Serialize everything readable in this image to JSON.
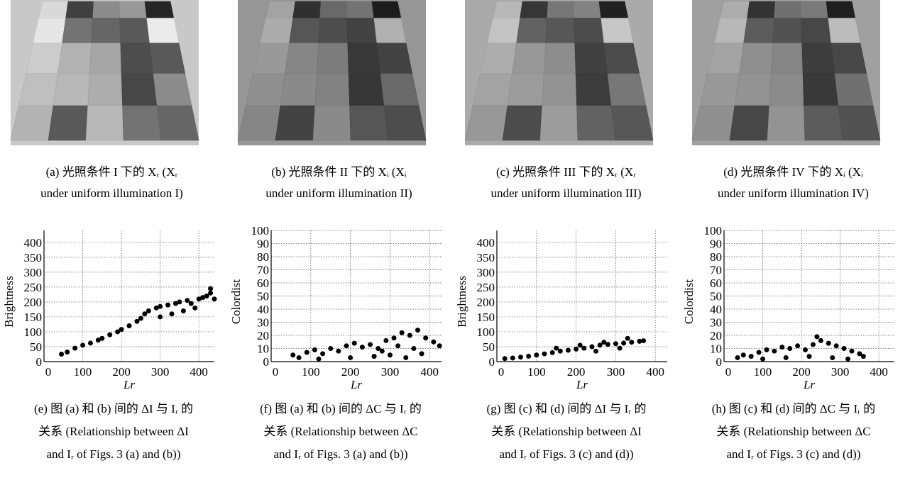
{
  "photos": [
    {
      "caption": [
        "(a) 光照条件 I 下的 Xᵣ (Xᵣ",
        "under uniform illumination I)"
      ]
    },
    {
      "caption": [
        "(b) 光照条件 II 下的 Xᵢ (Xᵢ",
        "under uniform illumination II)"
      ]
    },
    {
      "caption": [
        "(c) 光照条件 III 下的 Xᵣ (Xᵣ",
        "under uniform illumination III)"
      ]
    },
    {
      "caption": [
        "(d) 光照条件 IV 下的 Xᵢ (Xᵢ",
        "under uniform illumination IV)"
      ]
    }
  ],
  "chart_data": [
    {
      "type": "scatter",
      "x_label": "Lr",
      "y_label": "Brightness",
      "color": "#000000",
      "grid": true,
      "xlim": [
        0,
        440
      ],
      "ylim": [
        0,
        440
      ],
      "xticks": [
        0,
        100,
        200,
        300,
        400
      ],
      "yticks": [
        0,
        50,
        100,
        150,
        200,
        250,
        300,
        350,
        400
      ],
      "x": [
        45,
        60,
        80,
        100,
        120,
        140,
        150,
        170,
        190,
        200,
        220,
        240,
        250,
        260,
        270,
        290,
        300,
        320,
        340,
        350,
        370,
        380,
        400,
        410,
        420,
        430,
        440,
        330,
        360,
        300,
        390,
        430
      ],
      "values": [
        25,
        32,
        45,
        55,
        62,
        72,
        78,
        90,
        100,
        108,
        120,
        135,
        145,
        160,
        170,
        180,
        185,
        190,
        195,
        200,
        205,
        195,
        210,
        215,
        220,
        230,
        210,
        160,
        170,
        150,
        180,
        245
      ],
      "caption": [
        "(e) 图 (a) 和 (b) 间的 ΔI 与 Iᵣ 的",
        "关系 (Relationship between ΔI",
        "and Iᵣ of Figs. 3 (a) and (b))"
      ]
    },
    {
      "type": "scatter",
      "x_label": "Lr",
      "y_label": "Colordist",
      "color": "#000000",
      "grid": true,
      "xlim": [
        0,
        430
      ],
      "ylim": [
        0,
        100
      ],
      "xticks": [
        0,
        100,
        200,
        300,
        400
      ],
      "yticks": [
        0,
        10,
        20,
        30,
        40,
        50,
        60,
        70,
        80,
        90,
        100
      ],
      "x": [
        55,
        70,
        90,
        110,
        130,
        150,
        170,
        190,
        210,
        230,
        250,
        270,
        290,
        310,
        330,
        350,
        370,
        390,
        410,
        425,
        120,
        200,
        260,
        300,
        340,
        380,
        360,
        320,
        280
      ],
      "values": [
        5,
        3,
        7,
        9,
        6,
        10,
        8,
        12,
        14,
        11,
        13,
        10,
        16,
        18,
        22,
        20,
        24,
        18,
        15,
        12,
        2,
        3,
        4,
        5,
        3,
        6,
        10,
        12,
        8
      ],
      "caption": [
        "(f) 图 (a) 和 (b) 间的 ΔC 与 Iᵣ 的",
        "关系 (Relationship between ΔC",
        "and Iᵣ of Figs. 3 (a) and (b))"
      ]
    },
    {
      "type": "scatter",
      "x_label": "Lr",
      "y_label": "Brightness",
      "color": "#000000",
      "grid": true,
      "xlim": [
        0,
        430
      ],
      "ylim": [
        0,
        440
      ],
      "xticks": [
        0,
        100,
        200,
        300,
        400
      ],
      "yticks": [
        0,
        50,
        100,
        150,
        200,
        250,
        300,
        350,
        400
      ],
      "x": [
        20,
        40,
        60,
        80,
        100,
        120,
        140,
        160,
        180,
        200,
        220,
        240,
        260,
        280,
        300,
        320,
        340,
        360,
        370,
        150,
        210,
        270,
        330,
        250,
        310
      ],
      "values": [
        10,
        12,
        15,
        18,
        22,
        26,
        30,
        35,
        38,
        42,
        45,
        50,
        55,
        58,
        60,
        62,
        65,
        68,
        70,
        45,
        55,
        65,
        78,
        35,
        45
      ],
      "caption": [
        "(g) 图 (c) 和 (d) 间的 ΔI 与 Iᵣ 的",
        "关系 (Relationship between ΔI",
        "and Iᵣ of Figs. 3 (c) and (d))"
      ]
    },
    {
      "type": "scatter",
      "x_label": "Lr",
      "y_label": "Colordist",
      "color": "#000000",
      "grid": true,
      "xlim": [
        0,
        440
      ],
      "ylim": [
        0,
        100
      ],
      "xticks": [
        0,
        100,
        200,
        300,
        400
      ],
      "yticks": [
        0,
        10,
        20,
        30,
        40,
        50,
        60,
        70,
        80,
        90,
        100
      ],
      "x": [
        35,
        50,
        70,
        90,
        110,
        130,
        150,
        170,
        190,
        210,
        230,
        250,
        270,
        290,
        310,
        330,
        350,
        360,
        100,
        160,
        220,
        280,
        320,
        240
      ],
      "values": [
        3,
        5,
        4,
        7,
        9,
        8,
        11,
        10,
        12,
        9,
        13,
        16,
        14,
        12,
        10,
        8,
        6,
        4,
        2,
        3,
        4,
        3,
        2,
        19
      ],
      "caption": [
        "(h) 图 (c) 和 (d) 间的 ΔC 与 Iᵣ 的",
        "关系 (Relationship between ΔC",
        "and Iᵣ of Figs. 3 (c) and (d))"
      ]
    }
  ]
}
